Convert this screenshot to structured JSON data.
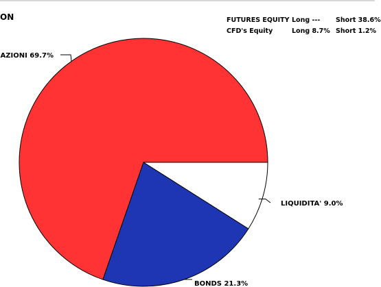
{
  "title": "ON",
  "exposure": {
    "rows": [
      {
        "name": "FUTURES EQUITY",
        "long": "Long ---",
        "short": "Short 38.6%"
      },
      {
        "name": "CFD's Equity",
        "long": "Long 8.7%",
        "short": "Short 1.2%"
      }
    ]
  },
  "chart_data": {
    "type": "pie",
    "title": "",
    "slices": [
      {
        "label": "LIQUIDITA' 9.0%",
        "name": "LIQUIDITA'",
        "value": 9.0,
        "color": "#ffffff"
      },
      {
        "label": "BONDS 21.3%",
        "name": "BONDS",
        "value": 21.3,
        "color": "#1f36b4"
      },
      {
        "label": "AZIONI 69.7%",
        "name": "AZIONI",
        "value": 69.7,
        "color": "#ff3333"
      }
    ],
    "legend": "none"
  }
}
